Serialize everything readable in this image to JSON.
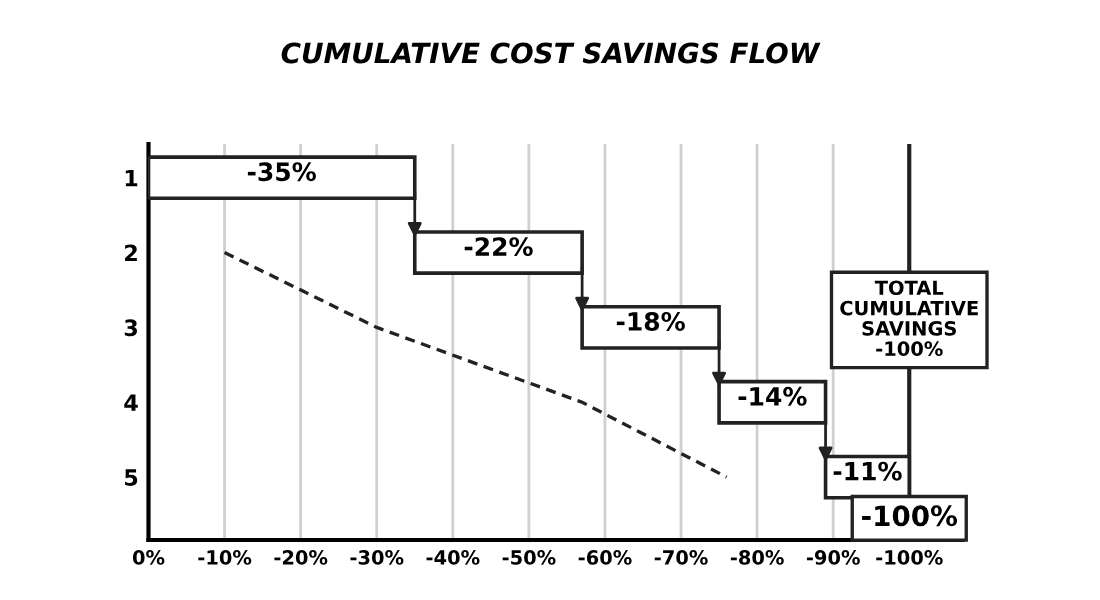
{
  "chart_data": {
    "type": "bar",
    "orientation": "horizontal",
    "title": "CUMULATIVE COST SAVINGS FLOW",
    "categories": [
      "1",
      "2",
      "3",
      "4",
      "5"
    ],
    "series": [
      {
        "color": "#ffffff",
        "base": [
          0,
          -35,
          -57,
          -75,
          -89
        ],
        "values": [
          -35,
          -22,
          -18,
          -14,
          -11
        ],
        "value_labels": [
          "-35%",
          "-22%",
          "-18%",
          "-14%",
          "-11%"
        ]
      },
      {
        "type": "line",
        "color": "#222222",
        "line_style": "dashed",
        "values": [
          null,
          -10,
          -30,
          -57,
          -76
        ]
      }
    ],
    "xlim": [
      0,
      -107
    ],
    "xticks": [
      {
        "value": 0,
        "label": "0%"
      },
      {
        "value": -10,
        "label": "-10%"
      },
      {
        "value": -20,
        "label": "-20%"
      },
      {
        "value": -30,
        "label": "-30%"
      },
      {
        "value": -40,
        "label": "-40%"
      },
      {
        "value": -50,
        "label": "-50%"
      },
      {
        "value": -60,
        "label": "-60%"
      },
      {
        "value": -70,
        "label": "-70%"
      },
      {
        "value": -80,
        "label": "-80%"
      },
      {
        "value": -90,
        "label": "-90%"
      },
      {
        "value": -100,
        "label": "-100%"
      }
    ],
    "grid": "x",
    "ref_lines": [
      {
        "axis": "x",
        "value": -100,
        "color": "#222222"
      }
    ],
    "annotations": [
      "TOTAL\nCUMULATIVE\nSAVINGS\n-100%",
      {
        "text": "-100%",
        "x": -100,
        "y": "5"
      }
    ]
  }
}
